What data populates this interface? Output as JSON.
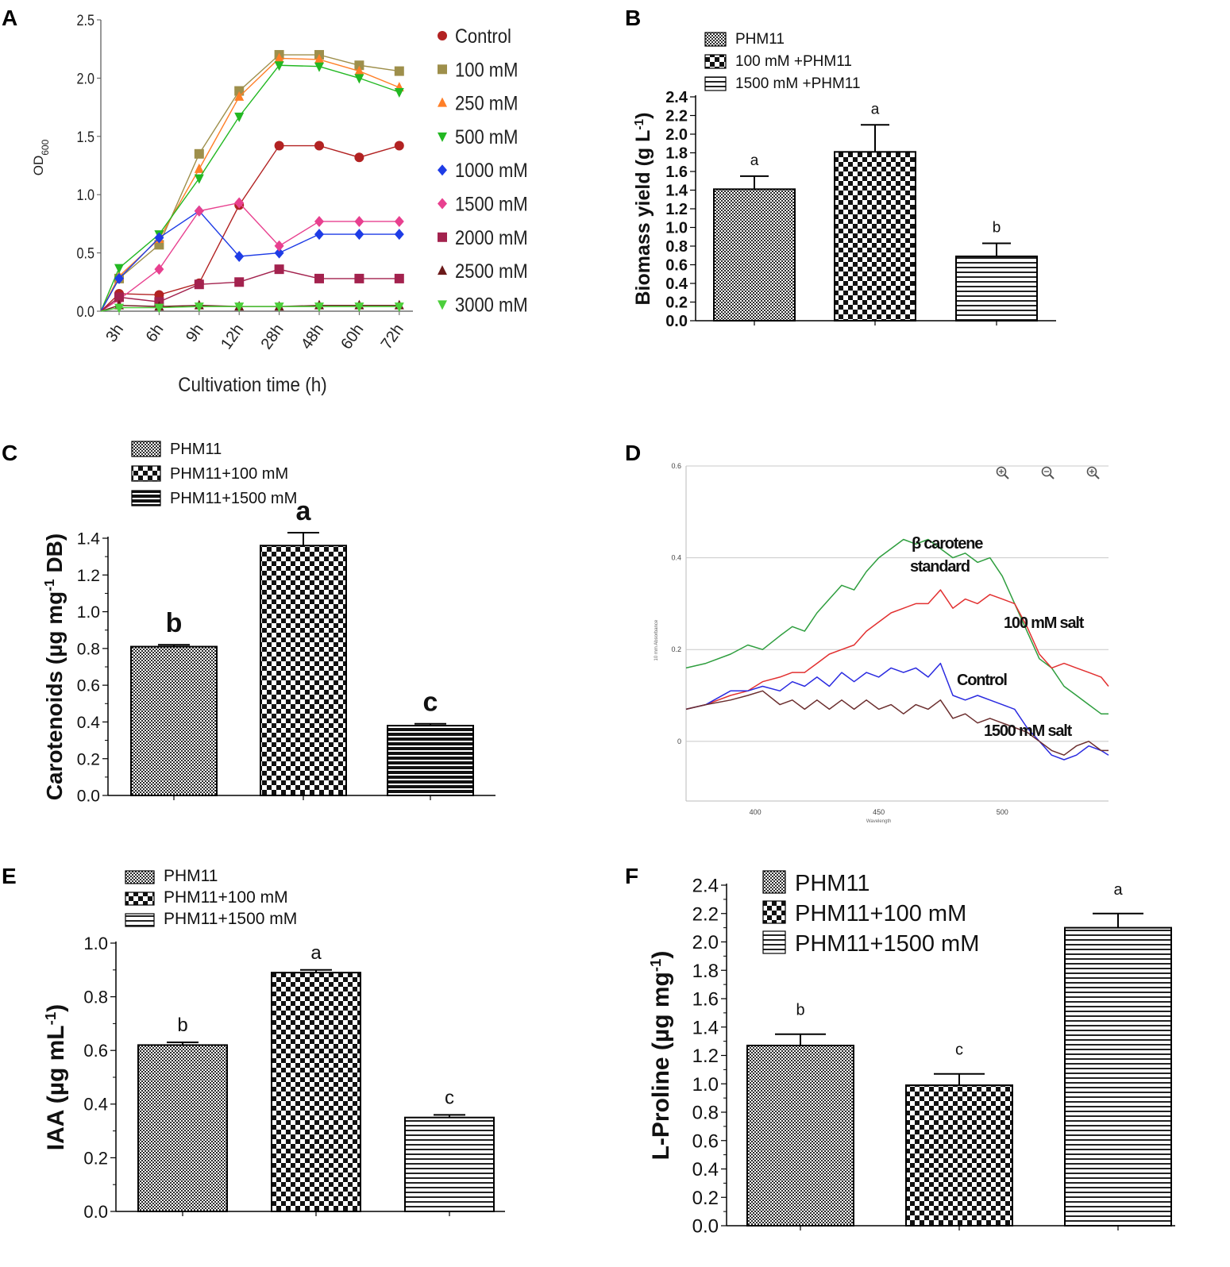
{
  "panels": {
    "A": "A",
    "B": "B",
    "C": "C",
    "D": "D",
    "E": "E",
    "F": "F"
  },
  "chart_data": [
    {
      "id": "A",
      "type": "line",
      "title": "",
      "xlabel": "Cultivation time (h)",
      "ylabel": "OD600",
      "ylabel_main": "OD",
      "ylabel_sub": "600",
      "categories": [
        "3h",
        "6h",
        "9h",
        "12h",
        "28h",
        "48h",
        "60h",
        "72h"
      ],
      "ylim": [
        0,
        2.5
      ],
      "yticks": [
        "0.0",
        "0.5",
        "1.0",
        "1.5",
        "2.0",
        "2.5"
      ],
      "yticks_values": [
        0,
        0.5,
        1.0,
        1.5,
        2.0,
        2.5
      ],
      "series": [
        {
          "name": "Control",
          "color": "#b22222",
          "marker": "circle",
          "values": [
            0.15,
            0.14,
            0.24,
            0.91,
            1.42,
            1.42,
            1.32,
            1.42
          ]
        },
        {
          "name": "100 mM",
          "color": "#9e8f4b",
          "marker": "square",
          "values": [
            0.28,
            0.57,
            1.35,
            1.89,
            2.2,
            2.2,
            2.11,
            2.06
          ]
        },
        {
          "name": "250 mM",
          "color": "#ff7f27",
          "marker": "triangle-up",
          "values": [
            0.3,
            0.62,
            1.22,
            1.84,
            2.17,
            2.16,
            2.06,
            1.92
          ]
        },
        {
          "name": "500 mM",
          "color": "#22b822",
          "marker": "triangle-down",
          "values": [
            0.37,
            0.66,
            1.14,
            1.67,
            2.11,
            2.1,
            2.0,
            1.88
          ]
        },
        {
          "name": "1000 mM",
          "color": "#1e3ce6",
          "marker": "diamond",
          "values": [
            0.28,
            0.63,
            0.86,
            0.47,
            0.5,
            0.66,
            0.66,
            0.66
          ]
        },
        {
          "name": "1500 mM",
          "color": "#e8408f",
          "marker": "diamond",
          "values": [
            0.1,
            0.36,
            0.86,
            0.93,
            0.56,
            0.77,
            0.77,
            0.77
          ]
        },
        {
          "name": "2000 mM",
          "color": "#a3224e",
          "marker": "square",
          "values": [
            0.12,
            0.08,
            0.23,
            0.25,
            0.36,
            0.28,
            0.28,
            0.28
          ]
        },
        {
          "name": "2500 mM",
          "color": "#6b1a1a",
          "marker": "triangle-up",
          "values": [
            0.05,
            0.04,
            0.05,
            0.04,
            0.04,
            0.05,
            0.05,
            0.05
          ]
        },
        {
          "name": "3000 mM",
          "color": "#4ccf3b",
          "marker": "triangle-down",
          "values": [
            0.03,
            0.03,
            0.04,
            0.04,
            0.04,
            0.04,
            0.04,
            0.04
          ]
        }
      ]
    },
    {
      "id": "B",
      "type": "bar",
      "ylabel_main": "Biomass yield (g L",
      "ylabel_sup": "-1",
      "ylabel_end": ")",
      "ylim": [
        0,
        2.4
      ],
      "yticks": [
        "0.0",
        "0.2",
        "0.4",
        "0.6",
        "0.8",
        "1.0",
        "1.2",
        "1.4",
        "1.6",
        "1.8",
        "2.0",
        "2.2",
        "2.4"
      ],
      "yticks_values": [
        0,
        0.2,
        0.4,
        0.6,
        0.8,
        1.0,
        1.2,
        1.4,
        1.6,
        1.8,
        2.0,
        2.2,
        2.4
      ],
      "categories": [
        "PHM11",
        "100 mM +PHM11",
        "1500 mM +PHM11"
      ],
      "patterns": [
        "fine",
        "check",
        "hline"
      ],
      "values": [
        1.41,
        1.81,
        0.69
      ],
      "errors": [
        0.14,
        0.29,
        0.14
      ],
      "letters": [
        "a",
        "a",
        "b"
      ]
    },
    {
      "id": "C",
      "type": "bar",
      "ylabel_main": "Carotenoids (µg mg",
      "ylabel_sup": "-1",
      "ylabel_end": " DB)",
      "ylim": [
        0,
        1.4
      ],
      "yticks": [
        "0.0",
        "0.2",
        "0.4",
        "0.6",
        "0.8",
        "1.0",
        "1.2",
        "1.4"
      ],
      "yticks_values": [
        0,
        0.2,
        0.4,
        0.6,
        0.8,
        1.0,
        1.2,
        1.4
      ],
      "categories": [
        "PHM11",
        "PHM11+100 mM",
        "PHM11+1500 mM"
      ],
      "patterns": [
        "fine",
        "check",
        "hline"
      ],
      "values": [
        0.81,
        1.36,
        0.38
      ],
      "errors": [
        0.01,
        0.07,
        0.01
      ],
      "letters": [
        "b",
        "a",
        "c"
      ]
    },
    {
      "id": "D",
      "type": "line",
      "xlabel": "Wavelength",
      "ylabel": "10 mm Absorbance",
      "xlim": [
        372,
        543
      ],
      "ylim": [
        -0.13,
        0.6
      ],
      "xticks": [
        "400",
        "450",
        "500"
      ],
      "xticks_values": [
        400,
        450,
        500
      ],
      "yticks": [
        "0",
        "0.2",
        "0.4",
        "0.6"
      ],
      "yticks_values": [
        0,
        0.2,
        0.4,
        0.6
      ],
      "zoom_icons": [
        "zoom-in-icon",
        "zoom-out-icon",
        "zoom-reset-icon"
      ],
      "annotations": [
        {
          "text": "β carotene",
          "series": "β carotene standard"
        },
        {
          "text": "standard",
          "series": "β carotene standard"
        },
        {
          "text": "100 mM salt",
          "series": "100 mM salt"
        },
        {
          "text": "Control",
          "series": "Control"
        },
        {
          "text": "1500 mM salt",
          "series": "1500 mM salt"
        }
      ],
      "series": [
        {
          "name": "β carotene standard",
          "color": "#2e9e3e",
          "x": [
            372,
            380,
            390,
            397,
            403,
            410,
            415,
            420,
            425,
            430,
            435,
            440,
            445,
            450,
            455,
            460,
            465,
            470,
            475,
            480,
            485,
            490,
            495,
            500,
            505,
            510,
            515,
            520,
            525,
            530,
            535,
            540,
            543
          ],
          "y": [
            0.16,
            0.17,
            0.19,
            0.21,
            0.2,
            0.23,
            0.25,
            0.24,
            0.28,
            0.31,
            0.34,
            0.33,
            0.37,
            0.4,
            0.42,
            0.44,
            0.43,
            0.44,
            0.42,
            0.4,
            0.41,
            0.39,
            0.4,
            0.36,
            0.3,
            0.24,
            0.18,
            0.16,
            0.12,
            0.1,
            0.08,
            0.06,
            0.06
          ]
        },
        {
          "name": "100 mM salt",
          "color": "#e23030",
          "x": [
            372,
            380,
            390,
            397,
            403,
            410,
            415,
            420,
            425,
            430,
            435,
            440,
            445,
            450,
            455,
            460,
            465,
            470,
            475,
            480,
            485,
            490,
            495,
            500,
            505,
            510,
            515,
            520,
            525,
            530,
            535,
            540,
            543
          ],
          "y": [
            0.07,
            0.08,
            0.1,
            0.11,
            0.13,
            0.14,
            0.15,
            0.15,
            0.17,
            0.19,
            0.2,
            0.21,
            0.24,
            0.26,
            0.28,
            0.29,
            0.3,
            0.3,
            0.33,
            0.29,
            0.31,
            0.3,
            0.32,
            0.31,
            0.3,
            0.25,
            0.19,
            0.16,
            0.17,
            0.16,
            0.15,
            0.14,
            0.12
          ]
        },
        {
          "name": "Control",
          "color": "#2a2ae0",
          "x": [
            372,
            380,
            390,
            397,
            403,
            410,
            415,
            420,
            425,
            430,
            435,
            440,
            445,
            450,
            455,
            460,
            465,
            470,
            475,
            480,
            485,
            490,
            495,
            500,
            505,
            510,
            515,
            520,
            525,
            530,
            535,
            540,
            543
          ],
          "y": [
            0.07,
            0.08,
            0.11,
            0.11,
            0.12,
            0.11,
            0.13,
            0.12,
            0.14,
            0.12,
            0.15,
            0.13,
            0.15,
            0.14,
            0.16,
            0.15,
            0.16,
            0.14,
            0.17,
            0.1,
            0.09,
            0.1,
            0.09,
            0.08,
            0.07,
            0.03,
            0.0,
            -0.03,
            -0.04,
            -0.03,
            -0.01,
            -0.02,
            -0.03
          ]
        },
        {
          "name": "1500 mM salt",
          "color": "#6b2e2e",
          "x": [
            372,
            380,
            390,
            397,
            403,
            410,
            415,
            420,
            425,
            430,
            435,
            440,
            445,
            450,
            455,
            460,
            465,
            470,
            475,
            480,
            485,
            490,
            495,
            500,
            505,
            510,
            515,
            520,
            525,
            530,
            535,
            540,
            543
          ],
          "y": [
            0.07,
            0.08,
            0.09,
            0.1,
            0.11,
            0.08,
            0.09,
            0.07,
            0.09,
            0.07,
            0.09,
            0.07,
            0.09,
            0.07,
            0.08,
            0.06,
            0.08,
            0.07,
            0.09,
            0.05,
            0.06,
            0.04,
            0.05,
            0.04,
            0.03,
            0.02,
            0.0,
            -0.02,
            -0.03,
            -0.01,
            0.0,
            -0.02,
            -0.02
          ]
        }
      ]
    },
    {
      "id": "E",
      "type": "bar",
      "ylabel_main": "IAA  (µg mL",
      "ylabel_sup": "-1",
      "ylabel_end": ")",
      "ylim": [
        0,
        1.0
      ],
      "yticks": [
        "0.0",
        "0.2",
        "0.4",
        "0.6",
        "0.8",
        "1.0"
      ],
      "yticks_values": [
        0,
        0.2,
        0.4,
        0.6,
        0.8,
        1.0
      ],
      "categories": [
        "PHM11",
        "PHM11+100 mM",
        "PHM11+1500 mM"
      ],
      "patterns": [
        "fine",
        "check",
        "hline"
      ],
      "values": [
        0.62,
        0.89,
        0.35
      ],
      "errors": [
        0.01,
        0.01,
        0.01
      ],
      "letters": [
        "b",
        "a",
        "c"
      ]
    },
    {
      "id": "F",
      "type": "bar",
      "ylabel_main": "L-Proline (µg mg",
      "ylabel_sup": "-1",
      "ylabel_end": ")",
      "ylim": [
        0,
        2.4
      ],
      "yticks": [
        "0.0",
        "0.2",
        "0.4",
        "0.6",
        "0.8",
        "1.0",
        "1.2",
        "1.4",
        "1.6",
        "1.8",
        "2.0",
        "2.2",
        "2.4"
      ],
      "yticks_values": [
        0,
        0.2,
        0.4,
        0.6,
        0.8,
        1.0,
        1.2,
        1.4,
        1.6,
        1.8,
        2.0,
        2.2,
        2.4
      ],
      "categories": [
        "PHM11",
        "PHM11+100 mM",
        "PHM11+1500 mM"
      ],
      "patterns": [
        "fine",
        "check",
        "hline"
      ],
      "values": [
        1.27,
        0.99,
        2.1
      ],
      "errors": [
        0.08,
        0.08,
        0.1
      ],
      "letters": [
        "b",
        "c",
        "a"
      ]
    }
  ]
}
